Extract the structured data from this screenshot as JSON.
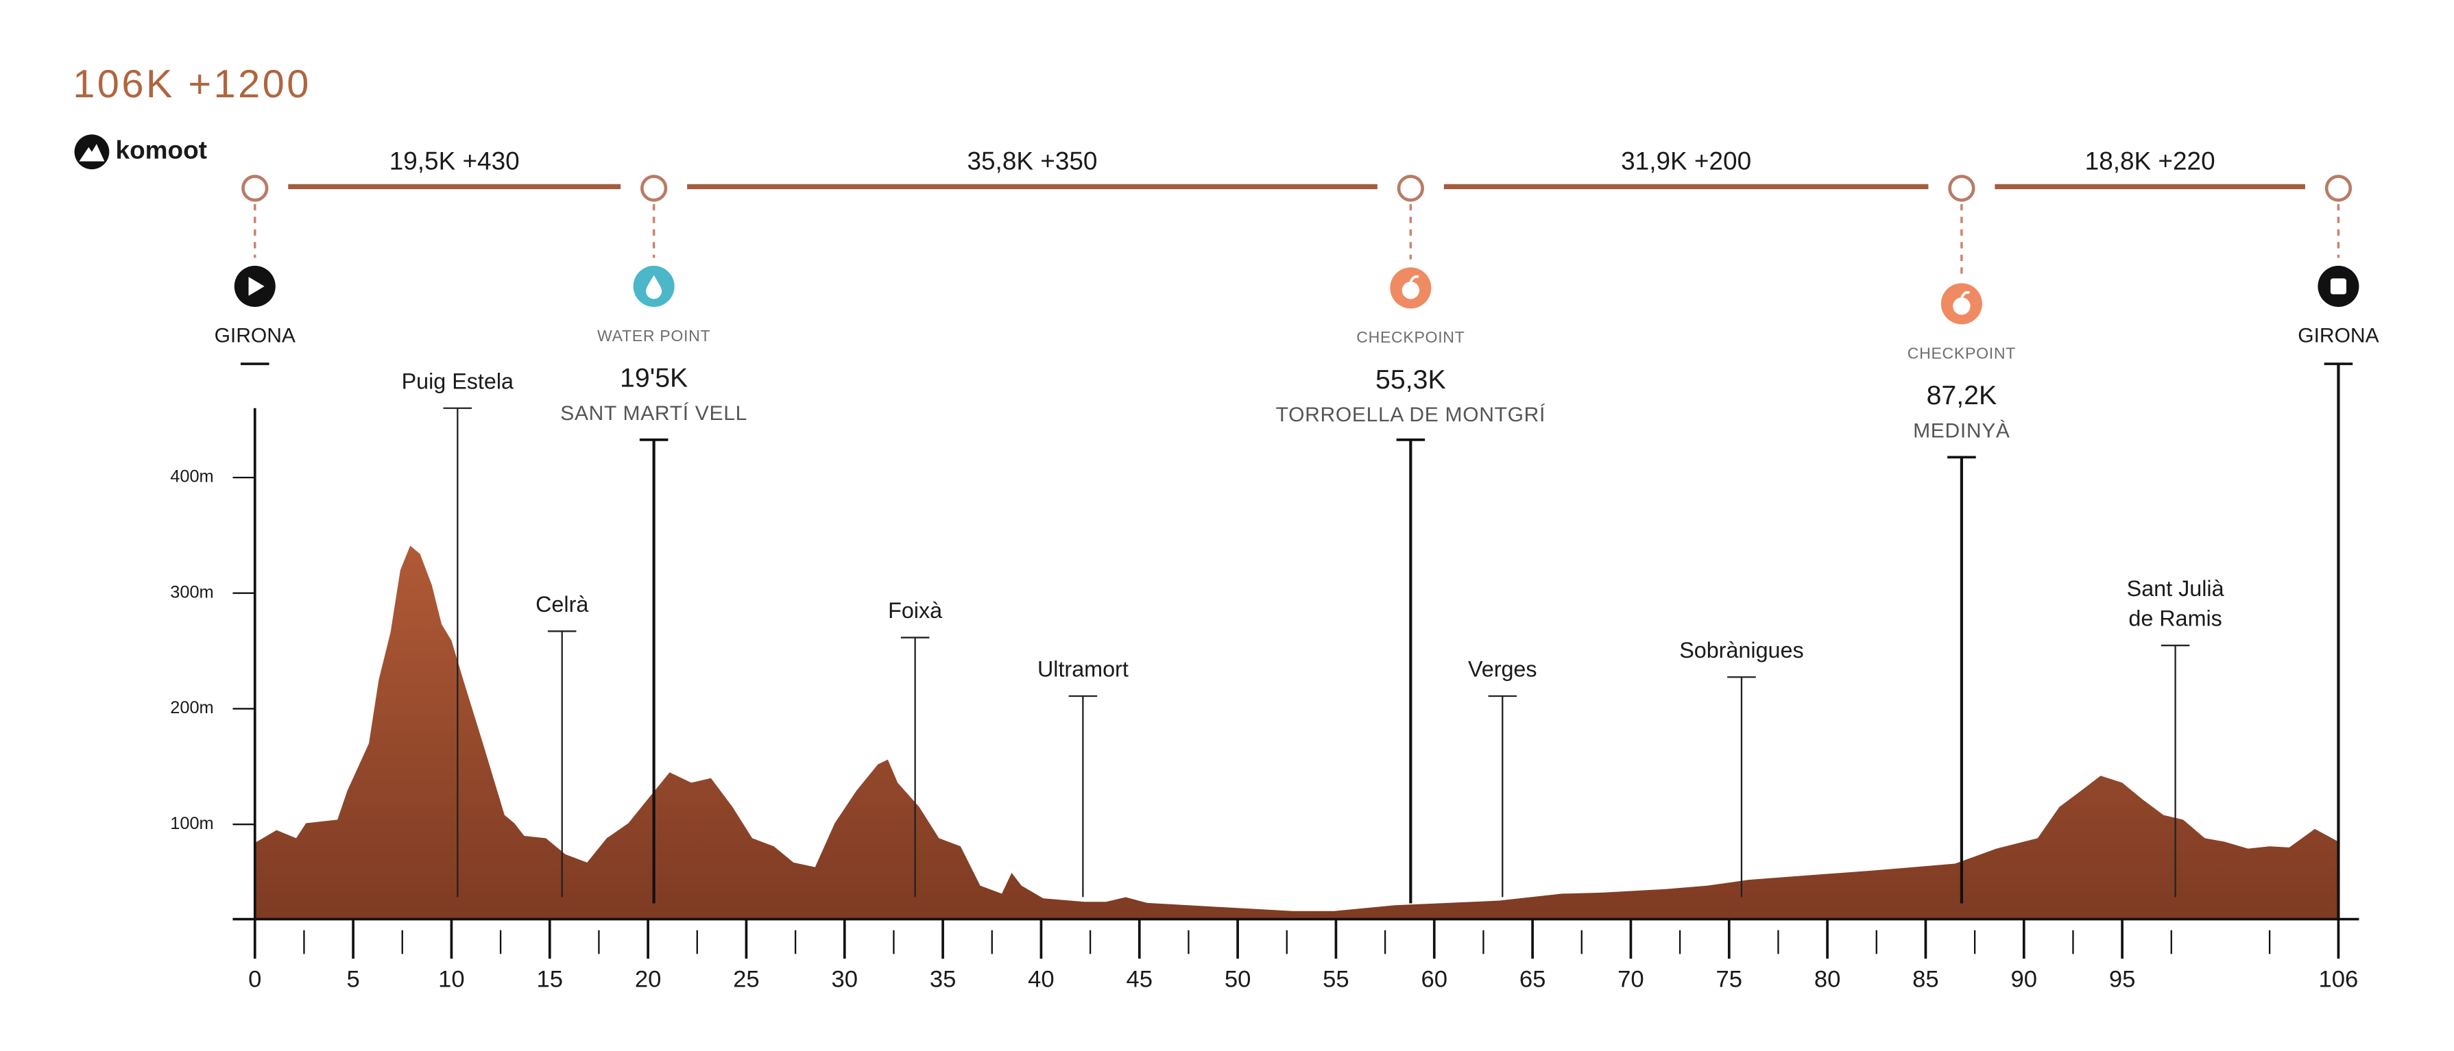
{
  "chart_data": {
    "type": "area",
    "title": "106K +1200",
    "logo": "komoot",
    "color": "#9c4a2b",
    "x": [
      0,
      1.1,
      2.1,
      2.6,
      4.2,
      4.7,
      5.8,
      6.3,
      6.9,
      7.4,
      7.9,
      8.4,
      9.0,
      9.5,
      10.0,
      10.6,
      11.6,
      12.7,
      13.2,
      13.7,
      14.8,
      15.8,
      16.9,
      17.9,
      19.0,
      20.0,
      21.1,
      22.2,
      23.2,
      24.3,
      25.3,
      26.4,
      27.4,
      28.5,
      29.5,
      30.6,
      31.7,
      32.2,
      32.7,
      33.8,
      34.8,
      35.9,
      36.9,
      38.0,
      38.5,
      39.0,
      40.1,
      42.2,
      43.3,
      44.3,
      45.4,
      47.5,
      52.8,
      54.9,
      58.0,
      63.3,
      66.5,
      68.6,
      71.8,
      73.9,
      76.0,
      79.1,
      82.3,
      84.4,
      86.5,
      88.6,
      90.7,
      91.8,
      92.9,
      93.9,
      95.0,
      96.0,
      97.1,
      98.1,
      99.2,
      100.2,
      101.4,
      102.5,
      103.5,
      104.8,
      106
    ],
    "values": [
      84,
      95,
      88,
      101,
      104,
      129,
      170,
      225,
      266,
      320,
      341,
      334,
      307,
      273,
      259,
      225,
      170,
      108,
      101,
      90,
      88,
      74,
      67,
      88,
      101,
      122,
      145,
      136,
      140,
      115,
      88,
      81,
      67,
      63,
      101,
      129,
      152,
      156,
      136,
      115,
      88,
      81,
      47,
      40,
      58,
      47,
      36,
      33,
      33,
      37,
      32,
      30,
      25,
      25,
      30,
      34,
      40,
      41,
      44,
      47,
      52,
      56,
      60,
      63,
      66,
      79,
      88,
      115,
      129,
      142,
      136,
      122,
      108,
      104,
      88,
      85,
      79,
      81,
      80,
      96,
      85
    ],
    "xlim": [
      0,
      106
    ],
    "ylim": [
      18,
      460
    ],
    "xticks": [
      0,
      5,
      10,
      15,
      20,
      25,
      30,
      35,
      40,
      45,
      50,
      55,
      60,
      65,
      70,
      75,
      80,
      85,
      90,
      95,
      106
    ],
    "xminorticks": [
      2.5,
      7.5,
      12.5,
      17.5,
      22.5,
      27.5,
      32.5,
      37.5,
      42.5,
      47.5,
      52.5,
      57.5,
      62.5,
      67.5,
      72.5,
      77.5,
      82.5,
      87.5,
      92.5,
      97.5,
      102.5
    ],
    "yticks": [
      {
        "value": 100,
        "label": "100m"
      },
      {
        "value": 200,
        "label": "200m"
      },
      {
        "value": 300,
        "label": "300m"
      },
      {
        "value": 400,
        "label": "400m"
      }
    ],
    "segments": [
      "19,5K +430",
      "35,8K +350",
      "31,9K +200",
      "18,8K +220"
    ],
    "waypoints": [
      {
        "icon": "start",
        "name": "GIRONA"
      },
      {
        "icon": "water",
        "kind": "WATER POINT",
        "km_label": "19'5K",
        "km": 19.5,
        "name": "SANT MARTÍ VELL"
      },
      {
        "icon": "checkpoint",
        "kind": "CHECKPOINT",
        "km_label": "55,3K",
        "km": 55.3,
        "name": "TORROELLA DE MONTGRÍ"
      },
      {
        "icon": "checkpoint",
        "kind": "CHECKPOINT",
        "km_label": "87,2K",
        "km": 87.2,
        "name": "MEDINYÀ"
      },
      {
        "icon": "finish",
        "name": "GIRONA"
      }
    ],
    "towns": [
      [
        "Puig Estela"
      ],
      [
        "Celrà"
      ],
      [
        "Foixà"
      ],
      [
        "Ultramort"
      ],
      [
        "Verges"
      ],
      [
        "Sobrànigues"
      ],
      [
        "Sant Julià",
        "de Ramis"
      ]
    ]
  }
}
